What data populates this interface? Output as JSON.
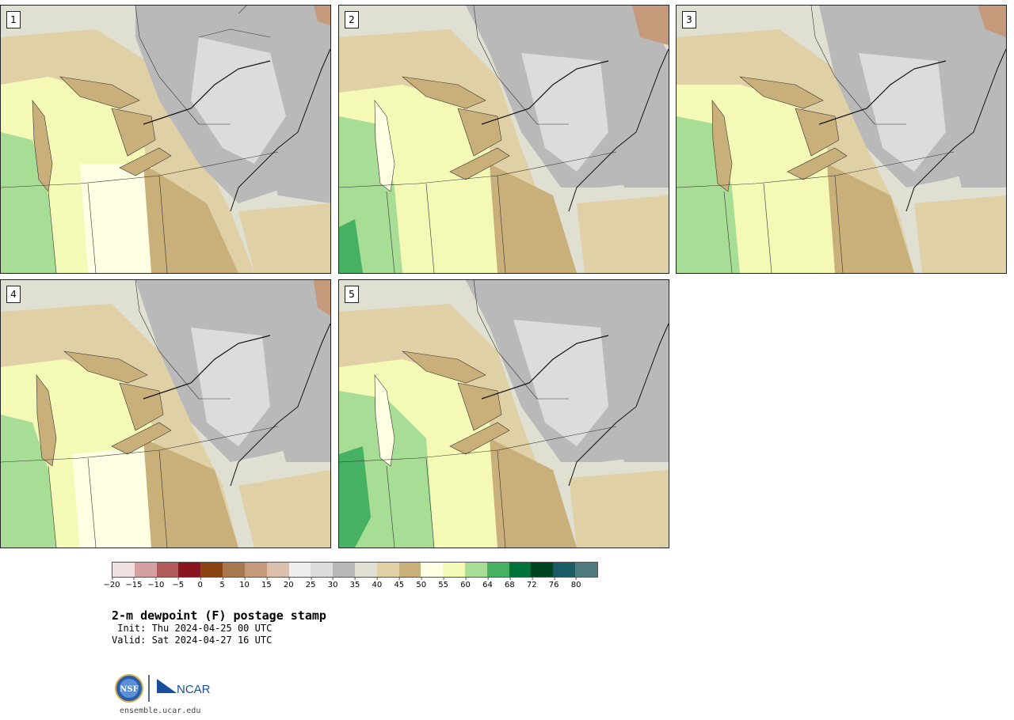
{
  "panels": [
    {
      "label": "1"
    },
    {
      "label": "2"
    },
    {
      "label": "3"
    },
    {
      "label": "4"
    },
    {
      "label": "5"
    }
  ],
  "colorbar": {
    "colors": [
      "#f0e0e0",
      "#d4a0a0",
      "#b05a5a",
      "#8a1420",
      "#8b4513",
      "#a8784e",
      "#c49a7a",
      "#dcbfad",
      "#eeeeee",
      "#dcdcdc",
      "#b9b9b9",
      "#dfdfd2",
      "#e0d0a6",
      "#c9b07a",
      "#ffffe4",
      "#f5f9b6",
      "#a8dd96",
      "#46b063",
      "#00733a",
      "#00441e",
      "#1a5c66",
      "#4e7a80"
    ],
    "tick_labels": [
      "−20",
      "−15",
      "−10",
      "−5",
      "0",
      "5",
      "10",
      "15",
      "20",
      "25",
      "30",
      "35",
      "40",
      "45",
      "50",
      "55",
      "60",
      "64",
      "68",
      "72",
      "76",
      "80"
    ]
  },
  "header": {
    "title": "2-m dewpoint (F) postage stamp",
    "init": " Init: Thu 2024-04-25 00 UTC",
    "valid": "Valid: Sat 2024-04-27 16 UTC"
  },
  "logos": {
    "nsf_text": "NSF",
    "ncar_text": "NCAR",
    "site": "ensemble.ucar.edu"
  },
  "map_colors": {
    "gray_dark": "#b9b9b9",
    "gray_light": "#dcdcdc",
    "tan": "#e0d0a6",
    "tan_dark": "#c9b07a",
    "yellow": "#f5f9b6",
    "cream": "#ffffe4",
    "green_light": "#a8dd96",
    "green": "#46b063",
    "pale": "#dfdfd2",
    "brown": "#c49a7a"
  }
}
